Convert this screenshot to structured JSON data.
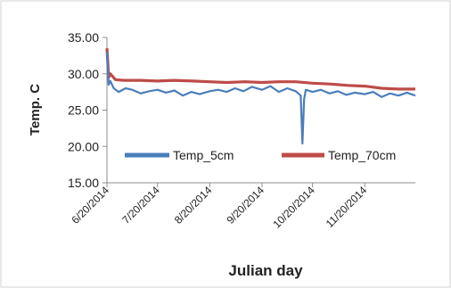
{
  "chart_data": {
    "type": "line",
    "title": "",
    "xlabel": "Julian day",
    "ylabel": "Temp. C",
    "xlim": [
      "2014-06-20",
      "2014-12-20"
    ],
    "ylim": [
      15,
      35
    ],
    "y_ticks": [
      "15.00",
      "20.00",
      "25.00",
      "30.00",
      "35.00"
    ],
    "x_ticks": [
      {
        "date": "2014-06-20",
        "label": "6/20/2014"
      },
      {
        "date": "2014-07-20",
        "label": "7/20/2014"
      },
      {
        "date": "2014-08-20",
        "label": "8/20/2014"
      },
      {
        "date": "2014-09-20",
        "label": "9/20/2014"
      },
      {
        "date": "2014-10-20",
        "label": "10/20/2014"
      },
      {
        "date": "2014-11-20",
        "label": "11/20/2014"
      }
    ],
    "grid": false,
    "legend_position": "inside-bottom",
    "series": [
      {
        "name": "Temp_5cm",
        "color": "#4a7ebb",
        "x": [
          "2014-06-20",
          "2014-06-21",
          "2014-06-22",
          "2014-06-24",
          "2014-06-27",
          "2014-07-01",
          "2014-07-05",
          "2014-07-10",
          "2014-07-15",
          "2014-07-20",
          "2014-07-25",
          "2014-07-30",
          "2014-08-04",
          "2014-08-09",
          "2014-08-14",
          "2014-08-20",
          "2014-08-25",
          "2014-08-30",
          "2014-09-04",
          "2014-09-09",
          "2014-09-14",
          "2014-09-20",
          "2014-09-25",
          "2014-09-30",
          "2014-10-05",
          "2014-10-10",
          "2014-10-13",
          "2014-10-14",
          "2014-10-15",
          "2014-10-16",
          "2014-10-20",
          "2014-10-25",
          "2014-10-30",
          "2014-11-04",
          "2014-11-09",
          "2014-11-14",
          "2014-11-20",
          "2014-11-25",
          "2014-11-30",
          "2014-12-05",
          "2014-12-10",
          "2014-12-15",
          "2014-12-20"
        ],
        "y": [
          33.0,
          28.5,
          29.0,
          28.0,
          27.5,
          28.0,
          27.8,
          27.3,
          27.6,
          27.8,
          27.4,
          27.7,
          27.0,
          27.5,
          27.2,
          27.6,
          27.8,
          27.5,
          28.0,
          27.6,
          28.2,
          27.8,
          28.3,
          27.5,
          28.0,
          27.6,
          27.0,
          20.4,
          26.5,
          27.8,
          27.5,
          27.8,
          27.3,
          27.6,
          27.1,
          27.4,
          27.2,
          27.5,
          26.8,
          27.3,
          27.0,
          27.4,
          27.0
        ]
      },
      {
        "name": "Temp_70cm",
        "color": "#be4b48",
        "x": [
          "2014-06-20",
          "2014-06-21",
          "2014-06-22",
          "2014-06-25",
          "2014-06-30",
          "2014-07-10",
          "2014-07-20",
          "2014-07-30",
          "2014-08-10",
          "2014-08-20",
          "2014-08-30",
          "2014-09-10",
          "2014-09-20",
          "2014-09-30",
          "2014-10-10",
          "2014-10-20",
          "2014-10-30",
          "2014-11-10",
          "2014-11-20",
          "2014-11-30",
          "2014-12-10",
          "2014-12-20"
        ],
        "y": [
          33.5,
          29.5,
          30.0,
          29.2,
          29.1,
          29.1,
          29.0,
          29.1,
          29.0,
          28.9,
          28.8,
          28.9,
          28.8,
          28.9,
          28.9,
          28.7,
          28.6,
          28.4,
          28.3,
          28.0,
          27.9,
          27.9
        ]
      }
    ]
  }
}
